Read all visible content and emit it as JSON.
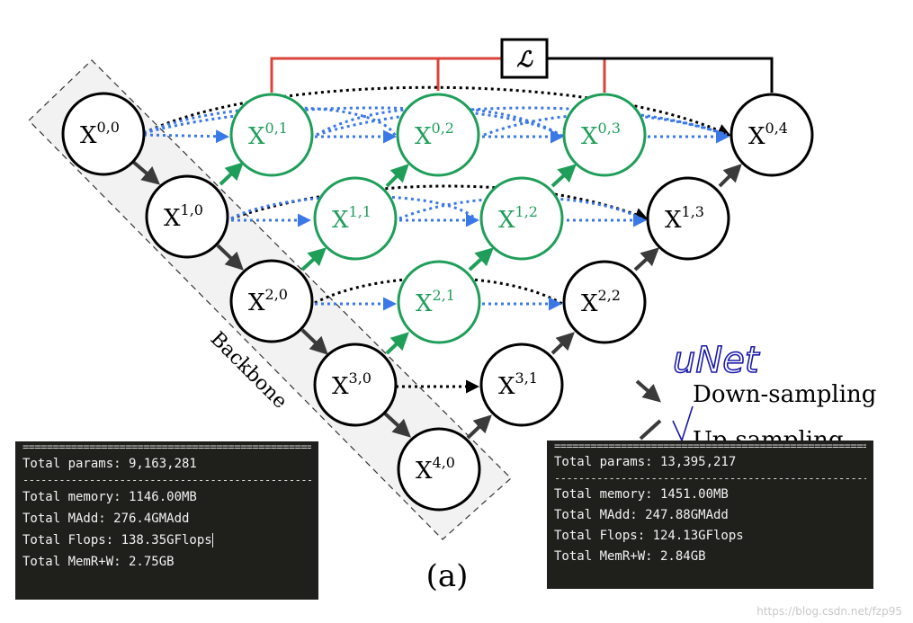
{
  "diagram": {
    "loss_symbol": "ℒ",
    "backbone_label": "Backbone",
    "caption": "(a)",
    "handwriting": "uNet",
    "legend": {
      "down": "Down-sampling",
      "up": "Up-sampling"
    },
    "nodes": [
      {
        "id": "0,0",
        "base": "X",
        "sup": "0,0",
        "style": "plain"
      },
      {
        "id": "1,0",
        "base": "X",
        "sup": "1,0",
        "style": "plain"
      },
      {
        "id": "2,0",
        "base": "X",
        "sup": "2,0",
        "style": "plain"
      },
      {
        "id": "3,0",
        "base": "X",
        "sup": "3,0",
        "style": "plain"
      },
      {
        "id": "4,0",
        "base": "X",
        "sup": "4,0",
        "style": "plain"
      },
      {
        "id": "0,1",
        "base": "X",
        "sup": "0,1",
        "style": "nested"
      },
      {
        "id": "1,1",
        "base": "X",
        "sup": "1,1",
        "style": "nested"
      },
      {
        "id": "2,1",
        "base": "X",
        "sup": "2,1",
        "style": "nested"
      },
      {
        "id": "0,2",
        "base": "X",
        "sup": "0,2",
        "style": "nested"
      },
      {
        "id": "1,2",
        "base": "X",
        "sup": "1,2",
        "style": "nested"
      },
      {
        "id": "0,3",
        "base": "X",
        "sup": "0,3",
        "style": "nested"
      },
      {
        "id": "3,1",
        "base": "X",
        "sup": "3,1",
        "style": "plain"
      },
      {
        "id": "2,2",
        "base": "X",
        "sup": "2,2",
        "style": "plain"
      },
      {
        "id": "1,3",
        "base": "X",
        "sup": "1,3",
        "style": "plain"
      },
      {
        "id": "0,4",
        "base": "X",
        "sup": "0,4",
        "style": "plain"
      }
    ],
    "colors": {
      "nested": "#1f9e5a",
      "skip": "#3b78e7",
      "loss_red": "#d9443b",
      "down": "#3a3a3a",
      "plain": "#000000"
    }
  },
  "terminals": {
    "left": {
      "separator": "========================================================================================",
      "dashes": "----------------------------------------------------------------------------------------",
      "params": "Total params: 9,163,281",
      "memory": "Total memory: 1146.00MB",
      "madd": "Total MAdd: 276.4GMAdd",
      "flops": "Total Flops: 138.35GFlops",
      "memrw": "Total MemR+W: 2.75GB"
    },
    "right": {
      "separator": "========================================================================================",
      "dashes": "----------------------------------------------------------------------------------------",
      "params": "Total params: 13,395,217",
      "memory": "Total memory: 1451.00MB",
      "madd": "Total MAdd: 247.88GMAdd",
      "flops": "Total Flops: 124.13GFlops",
      "memrw": "Total MemR+W: 2.84GB"
    }
  },
  "watermark": "https://blog.csdn.net/fzp95"
}
